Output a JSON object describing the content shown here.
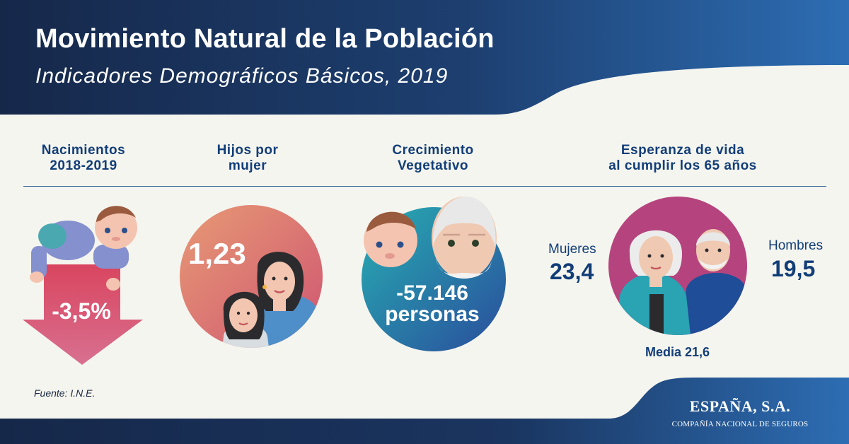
{
  "header": {
    "title": "Movimiento Natural de la Población",
    "subtitle": "Indicadores Demográficos Básicos,  2019"
  },
  "columns": {
    "births": {
      "heading_line1": "Nacimientos",
      "heading_line2": "2018-2019",
      "value": "-3,5%"
    },
    "children": {
      "heading_line1": "Hijos por",
      "heading_line2": "mujer",
      "value": "1,23"
    },
    "growth": {
      "heading_line1": "Crecimiento",
      "heading_line2": "Vegetativo",
      "value_line1": "-57.146",
      "value_line2": "personas"
    },
    "life": {
      "heading_line1": "Esperanza de vida",
      "heading_line2": "al cumplir los 65 años",
      "women_label": "Mujeres",
      "women_value": "23,4",
      "men_label": "Hombres",
      "men_value": "19,5",
      "average": "Media 21,6"
    }
  },
  "footer": {
    "source": "Fuente: I.N.E.",
    "brand_name": "ESPAÑA, S.A.",
    "brand_tagline": "COMPAÑÍA NACIONAL DE SEGUROS"
  },
  "colors": {
    "navy": "#16284a",
    "blue": "#2f68ad",
    "text_blue": "#123e78",
    "arrow_red": "#d9506a",
    "accent_pink": "#b5447e"
  }
}
